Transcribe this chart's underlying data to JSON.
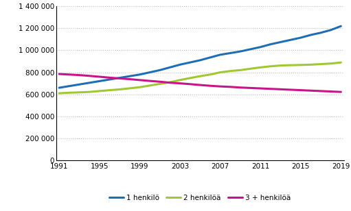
{
  "years": [
    1991,
    1992,
    1993,
    1994,
    1995,
    1996,
    1997,
    1998,
    1999,
    2000,
    2001,
    2002,
    2003,
    2004,
    2005,
    2006,
    2007,
    2008,
    2009,
    2010,
    2011,
    2012,
    2013,
    2014,
    2015,
    2016,
    2017,
    2018,
    2019
  ],
  "series": {
    "1 henkilö": [
      660000,
      675000,
      690000,
      705000,
      720000,
      735000,
      750000,
      765000,
      780000,
      800000,
      820000,
      845000,
      870000,
      890000,
      910000,
      935000,
      960000,
      975000,
      990000,
      1010000,
      1030000,
      1055000,
      1075000,
      1095000,
      1115000,
      1140000,
      1160000,
      1185000,
      1220000
    ],
    "2 henkilöä": [
      610000,
      615000,
      618000,
      622000,
      630000,
      638000,
      645000,
      655000,
      665000,
      680000,
      695000,
      710000,
      730000,
      748000,
      765000,
      780000,
      800000,
      812000,
      820000,
      833000,
      845000,
      855000,
      862000,
      865000,
      867000,
      870000,
      875000,
      880000,
      890000
    ],
    "3 + henkilöä": [
      785000,
      780000,
      775000,
      768000,
      760000,
      752000,
      745000,
      738000,
      730000,
      722000,
      715000,
      706000,
      700000,
      693000,
      685000,
      678000,
      672000,
      668000,
      662000,
      658000,
      654000,
      650000,
      646000,
      642000,
      638000,
      634000,
      630000,
      626000,
      622000
    ]
  },
  "colors": {
    "1 henkilö": "#1f6eb5",
    "2 henkilöä": "#a0c832",
    "3 + henkilöä": "#c8148c"
  },
  "xlim": [
    1991,
    2019
  ],
  "ylim": [
    0,
    1400000
  ],
  "yticks": [
    0,
    200000,
    400000,
    600000,
    800000,
    1000000,
    1200000,
    1400000
  ],
  "xticks": [
    1991,
    1995,
    1999,
    2003,
    2007,
    2011,
    2015,
    2019
  ],
  "grid_color": "#bbbbbb",
  "line_width": 2.2,
  "tick_fontsize": 7.5,
  "legend_fontsize": 7.5,
  "legend_order": [
    "1 henkilö",
    "2 henkilöä",
    "3 + henkilöä"
  ]
}
